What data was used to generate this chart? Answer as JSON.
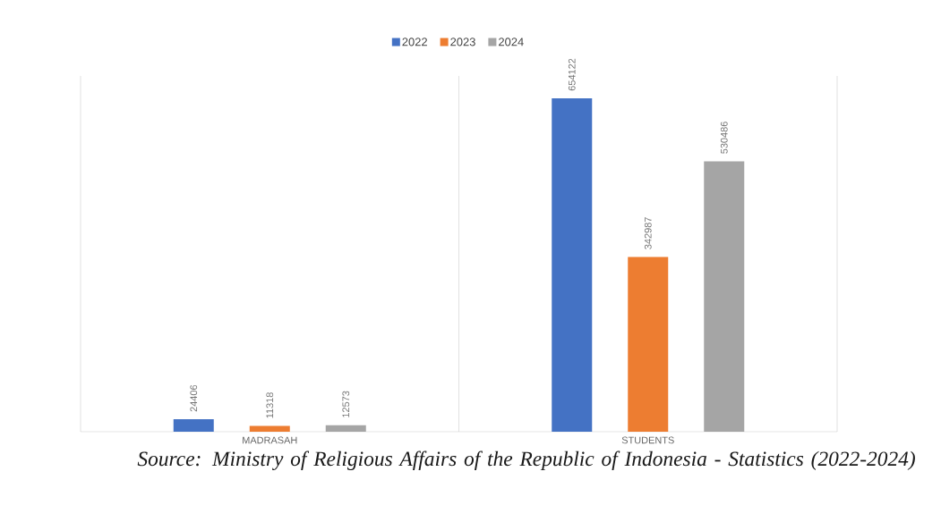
{
  "chart_data": {
    "type": "bar",
    "categories": [
      "MADRASAH",
      "STUDENTS"
    ],
    "series": [
      {
        "name": "2022",
        "color": "#4472c4",
        "values": [
          24406,
          654122
        ]
      },
      {
        "name": "2023",
        "color": "#ed7d31",
        "values": [
          11318,
          342987
        ]
      },
      {
        "name": "2024",
        "color": "#a5a5a5",
        "values": [
          12573,
          530486
        ]
      }
    ],
    "data_labels": true,
    "grid": "x",
    "legend": "top",
    "annotations": [
      "Source: Ministry of Religious Affairs of the Republic of Indonesia - Statistics (2022-2024)"
    ]
  }
}
